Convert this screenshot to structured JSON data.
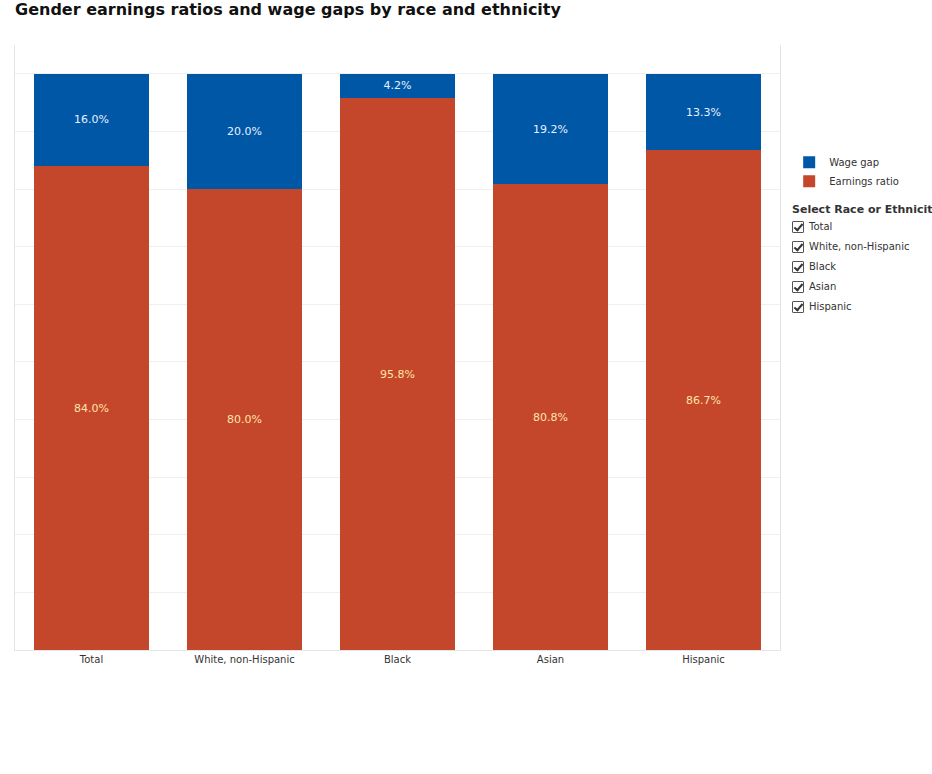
{
  "chart_data": {
    "type": "bar",
    "title": "Gender earnings ratios and wage gaps by race and ethnicity",
    "categories": [
      "Total",
      "White, non-Hispanic",
      "Black",
      "Asian",
      "Hispanic"
    ],
    "series": [
      {
        "name": "Earnings ratio",
        "color": "#c4472b",
        "values": [
          84.0,
          80.0,
          95.8,
          80.8,
          86.7
        ],
        "value_labels": [
          "84.0%",
          "80.0%",
          "95.8%",
          "80.8%",
          "86.7%"
        ]
      },
      {
        "name": "Wage gap",
        "color": "#0057a6",
        "values": [
          16.0,
          20.0,
          4.2,
          19.2,
          13.3
        ],
        "value_labels": [
          "16.0%",
          "20.0%",
          "4.2%",
          "19.2%",
          "13.3%"
        ]
      }
    ],
    "stacked": true,
    "data_labels": true,
    "tick_labels": "x",
    "grid": true,
    "legend": "right",
    "ylim": [
      0,
      105
    ],
    "yticks": [
      0,
      10,
      20,
      30,
      40,
      50,
      60,
      70,
      80,
      90,
      100
    ]
  },
  "filter": {
    "title": "Select Race or Ethnicity",
    "options": [
      "Total",
      "White, non-Hispanic",
      "Black",
      "Asian",
      "Hispanic"
    ]
  }
}
